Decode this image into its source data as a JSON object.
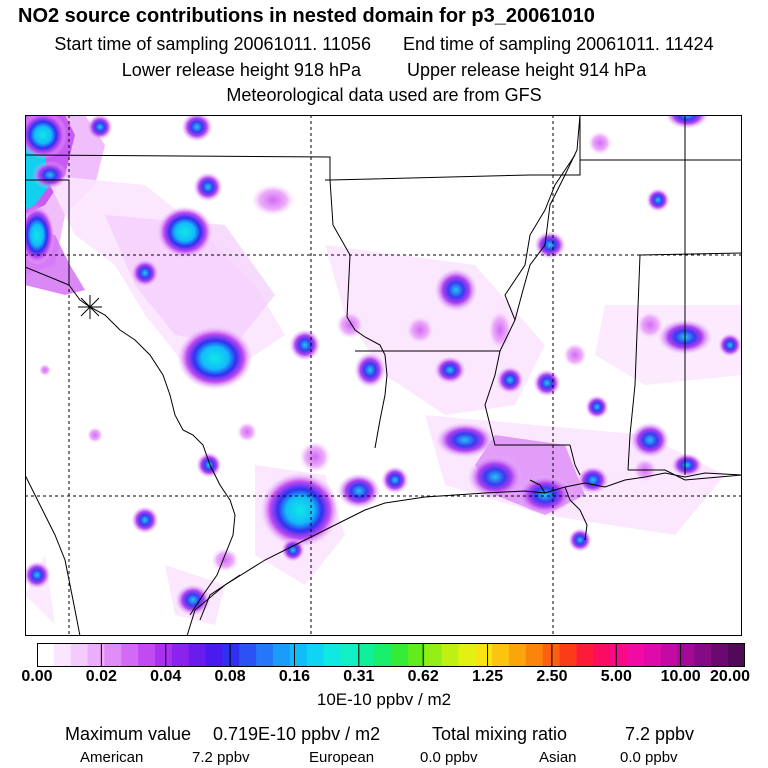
{
  "title": "NO2 source contributions in nested domain for p3_20061010",
  "sampling": {
    "start_label": "Start time of sampling",
    "start_value": "20061011. 11056",
    "end_label": "End time of sampling",
    "end_value": "20061011. 11424"
  },
  "release": {
    "lower_label": "Lower release height",
    "lower_value": "918 hPa",
    "upper_label": "Upper release height",
    "upper_value": "914 hPa"
  },
  "met_note": "Meteorological data used are from GFS",
  "colorbar": {
    "tick_labels": [
      "0.00",
      "0.02",
      "0.04",
      "0.08",
      "0.16",
      "0.31",
      "0.62",
      "1.25",
      "2.50",
      "5.00",
      "10.00",
      "20.00"
    ],
    "colors": [
      "#ffffff",
      "#fbe6ff",
      "#f4ccfc",
      "#ecaefa",
      "#e08cf7",
      "#d26af5",
      "#c24af2",
      "#a832f0",
      "#8c22ee",
      "#6a1cee",
      "#4a1aee",
      "#3030f0",
      "#2a52f4",
      "#2478f8",
      "#1a9cfa",
      "#12bcfa",
      "#10d4f4",
      "#10e8e4",
      "#10f0c4",
      "#10f09a",
      "#18ee6a",
      "#34ec38",
      "#62ec1c",
      "#92ee14",
      "#bef012",
      "#e2f012",
      "#f6e410",
      "#fcc40e",
      "#fca40c",
      "#fc840c",
      "#fc6010",
      "#fc3c18",
      "#fc1c38",
      "#fc0c60",
      "#fa0a86",
      "#f20aa2",
      "#e00aaa",
      "#c40aa4",
      "#a40a98",
      "#860a86",
      "#6a0a70",
      "#500a58"
    ],
    "units": "10E-10 ppbv / m2"
  },
  "summary": {
    "max_label": "Maximum value",
    "max_value": "0.719E-10 ppbv / m2",
    "total_label": "Total mixing ratio",
    "total_value": "7.2 ppbv"
  },
  "regions": [
    {
      "name": "American",
      "value": "7.2 ppbv"
    },
    {
      "name": "European",
      "value": "0.0 ppbv"
    },
    {
      "name": "Asian",
      "value": "0.0 ppbv"
    }
  ]
}
